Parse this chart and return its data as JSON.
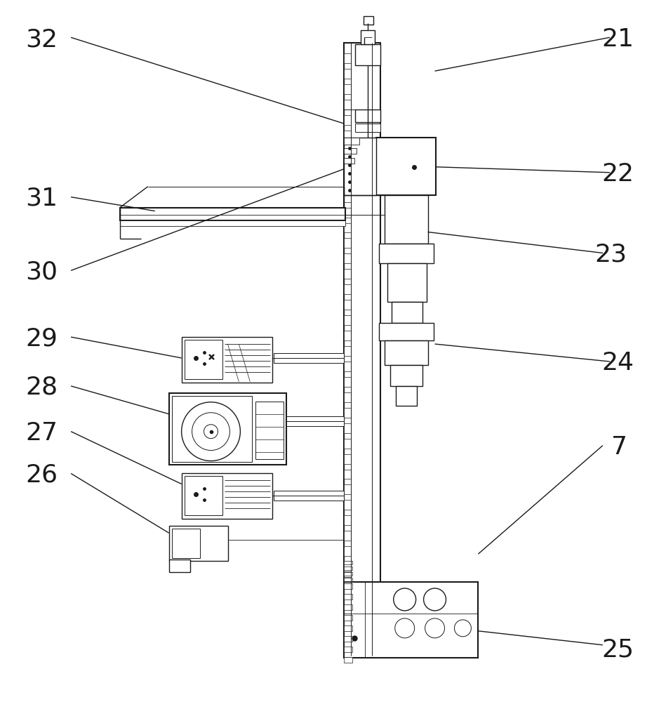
{
  "bg_color": "#ffffff",
  "line_color": "#1a1a1a",
  "label_color": "#1a1a1a",
  "label_fontsize": 26,
  "figsize": [
    9.39,
    10.0
  ],
  "dpi": 100
}
